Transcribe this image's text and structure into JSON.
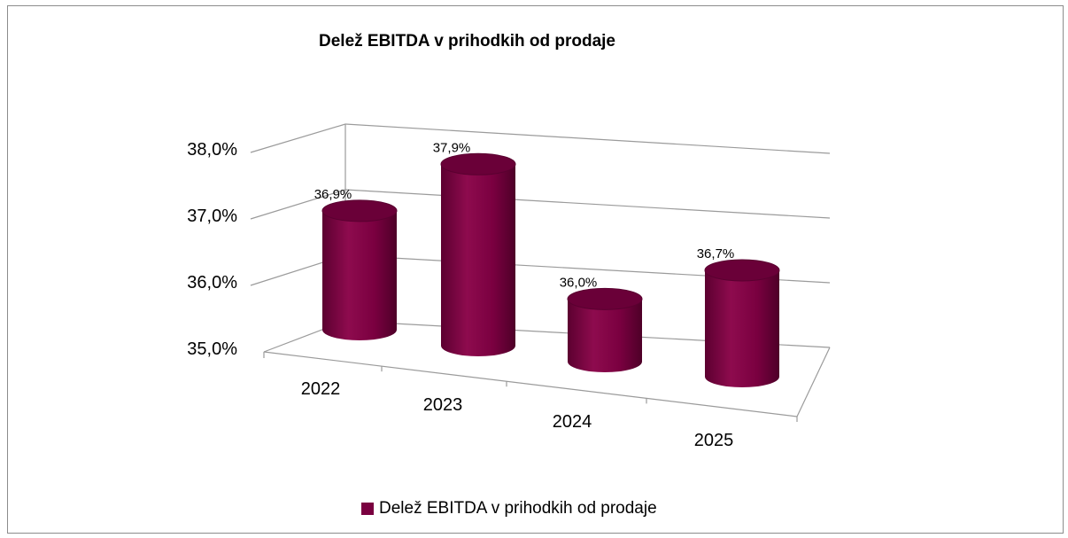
{
  "chart_data": {
    "type": "bar",
    "subtype": "3d-cylinder",
    "title": "Delež EBITDA v prihodkih od prodaje",
    "categories": [
      "2022",
      "2023",
      "2024",
      "2025"
    ],
    "series": [
      {
        "name": "Delež EBITDA v prihodkih od prodaje",
        "values": [
          36.9,
          37.9,
          36.0,
          36.7
        ]
      }
    ],
    "data_labels": [
      "36,9%",
      "37,9%",
      "36,0%",
      "36,7%"
    ],
    "y_ticks": [
      "35,0%",
      "36,0%",
      "37,0%",
      "38,0%"
    ],
    "ylim": [
      35.0,
      38.0
    ],
    "grid": true,
    "legend_position": "bottom",
    "color": "#7a0040"
  }
}
